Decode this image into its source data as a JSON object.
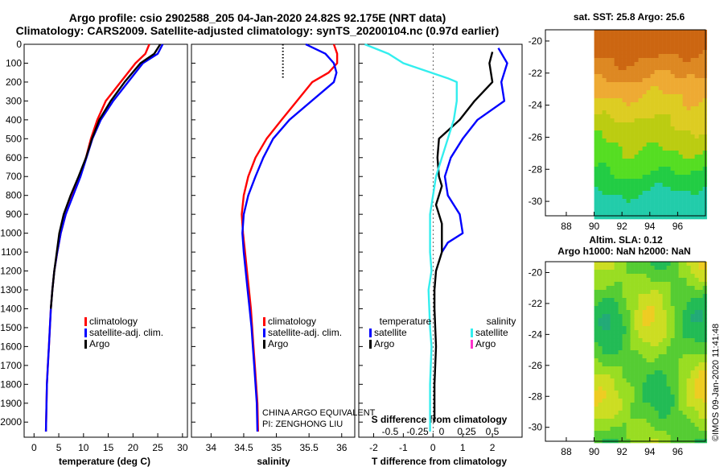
{
  "header": {
    "title_line1": "Argo profile: csio 2902588_205 04-Jan-2020 24.82S 92.175E (NRT data)",
    "title_line2": "Climatology: CARS2009. Satellite-adjusted climatology: synTS_20200104.nc (0.97d earlier)"
  },
  "colors": {
    "climatology": "#ff0000",
    "satellite": "#0000ff",
    "argo": "#000000",
    "sat_salinity": "#33eeee",
    "argo_salinity": "#ff33cc"
  },
  "chart_data": [
    {
      "id": "temperature",
      "type": "line",
      "xlabel": "temperature (deg C)",
      "xlim": [
        -2,
        31
      ],
      "xticks": [
        0,
        5,
        10,
        15,
        20,
        25,
        30
      ],
      "ylim": [
        2080,
        0
      ],
      "yticks": [
        0,
        100,
        200,
        300,
        400,
        500,
        600,
        700,
        800,
        900,
        1000,
        1100,
        1200,
        1300,
        1400,
        1500,
        1600,
        1700,
        1800,
        1900,
        2000
      ],
      "legend": [
        "climatology",
        "satellite-adj. clim.",
        "Argo"
      ],
      "series": [
        {
          "name": "climatology",
          "color": "#ff0000",
          "x": [
            23.3,
            22.5,
            20.5,
            17.5,
            14.5,
            12.8,
            11.5,
            10.5,
            9.3,
            7.8,
            6.4,
            5.4,
            4.7,
            4.1,
            3.7,
            3.4,
            3.2,
            3.0,
            2.8,
            2.6,
            2.4
          ],
          "y": [
            0,
            50,
            100,
            200,
            300,
            400,
            500,
            600,
            700,
            800,
            900,
            1000,
            1100,
            1200,
            1300,
            1400,
            1500,
            1600,
            1700,
            1800,
            2050
          ]
        },
        {
          "name": "satellite-adj. clim.",
          "color": "#0000ff",
          "x": [
            26.0,
            25.0,
            22.0,
            19.0,
            16.0,
            13.5,
            11.8,
            10.6,
            9.4,
            7.9,
            6.4,
            5.4,
            4.7,
            4.1,
            3.7,
            3.4,
            3.2,
            3.0,
            2.8,
            2.6,
            2.4
          ],
          "y": [
            0,
            50,
            100,
            200,
            300,
            400,
            500,
            600,
            700,
            800,
            900,
            1000,
            1100,
            1200,
            1300,
            1400,
            1500,
            1600,
            1700,
            1800,
            2050
          ]
        },
        {
          "name": "Argo",
          "color": "#000000",
          "x": [
            25.5,
            24.3,
            21.5,
            18.3,
            15.5,
            13.2,
            11.7,
            10.5,
            9.0,
            7.4,
            6.0,
            5.1,
            4.6,
            4.1,
            3.7,
            3.4
          ],
          "y": [
            0,
            50,
            100,
            200,
            300,
            400,
            500,
            600,
            700,
            800,
            900,
            1000,
            1100,
            1200,
            1300,
            1400
          ]
        }
      ]
    },
    {
      "id": "salinity",
      "type": "line",
      "xlabel": "salinity",
      "xlim": [
        33.7,
        36.2
      ],
      "xticks": [
        34,
        34.5,
        35,
        35.5,
        36
      ],
      "xtick_labels": [
        "34",
        "34.5",
        "35",
        "35.5",
        "36"
      ],
      "ylim": [
        2080,
        0
      ],
      "legend": [
        "climatology",
        "satellite-adj. clim.",
        "Argo"
      ],
      "annotation": [
        "CHINA ARGO EQUIVALENT",
        "PI: ZENGHONG LIU"
      ],
      "series": [
        {
          "name": "climatology",
          "color": "#ff0000",
          "x": [
            35.88,
            35.93,
            35.93,
            35.8,
            35.55,
            35.08,
            34.85,
            34.68,
            34.57,
            34.5,
            34.47,
            34.49,
            34.52,
            34.55,
            34.58,
            34.61,
            34.63,
            34.65,
            34.67,
            34.69,
            34.71,
            34.72
          ],
          "y": [
            0,
            50,
            100,
            150,
            200,
            400,
            500,
            600,
            700,
            800,
            900,
            1000,
            1100,
            1200,
            1300,
            1400,
            1500,
            1600,
            1700,
            1800,
            1900,
            2050
          ]
        },
        {
          "name": "satellite-adj. clim.",
          "color": "#0000ff",
          "x": [
            35.45,
            35.75,
            35.88,
            35.92,
            35.88,
            35.2,
            34.95,
            34.8,
            34.68,
            34.57,
            34.5,
            34.48,
            34.5,
            34.53,
            34.56,
            34.59,
            34.62,
            34.64,
            34.66,
            34.68,
            34.7,
            34.71
          ],
          "y": [
            0,
            50,
            100,
            150,
            200,
            400,
            500,
            600,
            700,
            800,
            900,
            1000,
            1100,
            1200,
            1300,
            1400,
            1500,
            1600,
            1700,
            1800,
            1900,
            2050
          ]
        },
        {
          "name": "Argo",
          "color": "#000000",
          "x": [
            35.1,
            35.1,
            35.1,
            35.1,
            35.1
          ],
          "y": [
            0,
            30,
            60,
            100,
            150
          ]
        }
      ]
    },
    {
      "id": "difference",
      "type": "line",
      "xlabel": "T difference from climatology",
      "xlabel_top": "S difference from climatology",
      "xlim": [
        -2.5,
        3
      ],
      "xticks": [
        -2,
        -1,
        0,
        1,
        2
      ],
      "xticks_top": [
        -0.5,
        -0.25,
        0,
        0.25,
        0.5
      ],
      "ylim": [
        2080,
        0
      ],
      "legend_titles": [
        "temperature",
        "salinity"
      ],
      "legend_temperature": [
        "satellite",
        "Argo"
      ],
      "legend_salinity": [
        "satellite",
        "Argo"
      ],
      "series": [
        {
          "name": "T satellite",
          "color": "#0000ff",
          "x": [
            2.2,
            2.5,
            2.3,
            2.4,
            1.5,
            1.0,
            0.6,
            0.4,
            0.5,
            0.9,
            1.0,
            0.5,
            0.3
          ],
          "y": [
            20,
            100,
            200,
            300,
            400,
            500,
            600,
            700,
            800,
            900,
            1000,
            1050,
            1100
          ]
        },
        {
          "name": "T Argo",
          "color": "#000000",
          "x": [
            2.0,
            1.9,
            2.0,
            1.4,
            0.9,
            0.2,
            0.15,
            0.2,
            0.3,
            0.1,
            0.3,
            0.3,
            0.1,
            0.05,
            0.05,
            0.1,
            0.05,
            0.05
          ],
          "y": [
            40,
            100,
            200,
            300,
            400,
            500,
            600,
            700,
            750,
            850,
            950,
            1100,
            1200,
            1300,
            1400,
            1600,
            1800,
            2000
          ]
        },
        {
          "name": "S satellite",
          "color": "#33eeee",
          "x": [
            -2.3,
            -1.5,
            -1.0,
            0.5,
            0.8,
            0.8,
            0.7,
            0.5,
            0.3,
            0.1,
            0.0,
            -0.1,
            -0.1,
            -0.1,
            -0.05,
            -0.15,
            -0.1,
            -0.05,
            -0.1,
            -0.1
          ],
          "y": [
            0,
            50,
            100,
            180,
            200,
            300,
            400,
            500,
            600,
            700,
            800,
            900,
            1000,
            1100,
            1200,
            1300,
            1500,
            1600,
            1800,
            2050
          ]
        }
      ]
    },
    {
      "id": "sst_map",
      "type": "heatmap",
      "title": "sat. SST: 25.8 Argo: 25.6",
      "xticks": [
        88,
        90,
        92,
        94,
        96
      ],
      "yticks": [
        -20,
        -22,
        -24,
        -26,
        -28,
        -30
      ],
      "xlim": [
        86.5,
        98
      ],
      "ylim": [
        -30.9,
        -19.3
      ],
      "data_lon_range": [
        90,
        98
      ],
      "data_lat_range": [
        -30.9,
        -19.3
      ],
      "colors": [
        "#cc6611",
        "#dd8822",
        "#eeaa33",
        "#ddcc22",
        "#bbcc11",
        "#55dd22",
        "#22cc44",
        "#22ccaa"
      ]
    },
    {
      "id": "sla_map",
      "type": "heatmap",
      "title": "Altim. SLA: 0.12",
      "subtitle": "Argo h1000: NaN h2000: NaN",
      "xticks": [
        88,
        90,
        92,
        94,
        96
      ],
      "yticks": [
        -20,
        -22,
        -24,
        -26,
        -28,
        -30
      ],
      "xlim": [
        86.5,
        98
      ],
      "ylim": [
        -30.9,
        -19.3
      ],
      "data_lon_range": [
        90,
        98
      ],
      "data_lat_range": [
        -30.9,
        -19.3
      ],
      "colors": [
        "#22aa77",
        "#22bb55",
        "#55cc33",
        "#99dd22",
        "#ccdd22",
        "#eecc22"
      ]
    }
  ],
  "watermark": "©IMOS 09-Jan-2020 11:41:48"
}
